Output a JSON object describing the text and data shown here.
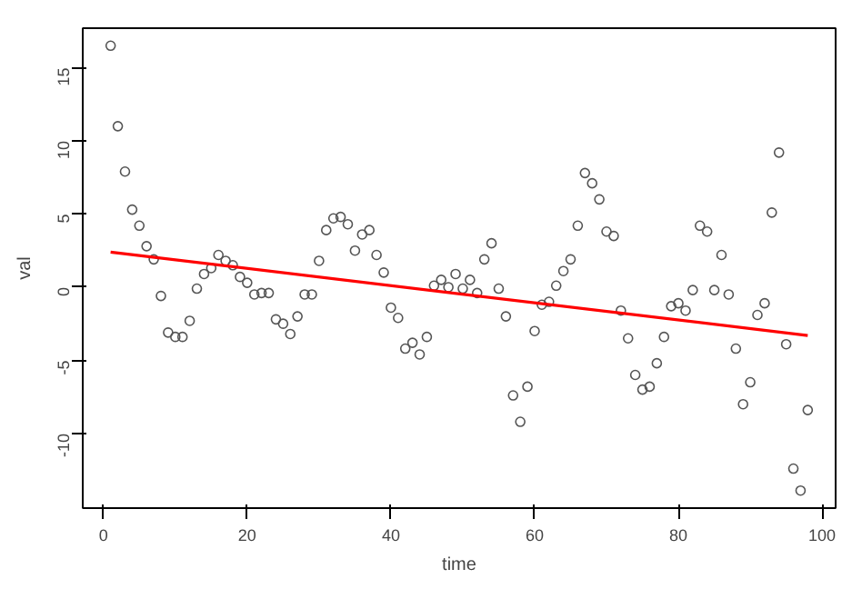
{
  "chart_data": {
    "type": "scatter",
    "xlabel": "time",
    "ylabel": "val",
    "marker": "circle",
    "grid": false,
    "xlim": [
      -2.88,
      101.88
    ],
    "ylim": [
      -15.1,
      17.7
    ],
    "xticks": [
      0,
      20,
      40,
      60,
      80,
      100
    ],
    "yticks": [
      -10,
      -5,
      0,
      5,
      10,
      15
    ],
    "x": [
      1,
      2,
      3,
      4,
      5,
      6,
      7,
      8,
      9,
      10,
      11,
      12,
      13,
      14,
      15,
      16,
      17,
      18,
      19,
      20,
      21,
      22,
      23,
      24,
      25,
      26,
      27,
      28,
      29,
      30,
      31,
      32,
      33,
      34,
      35,
      36,
      37,
      38,
      39,
      40,
      41,
      42,
      43,
      44,
      45,
      46,
      47,
      48,
      49,
      50,
      51,
      52,
      53,
      54,
      55,
      56,
      57,
      58,
      59,
      60,
      61,
      62,
      63,
      64,
      65,
      66,
      67,
      68,
      69,
      70,
      71,
      72,
      73,
      74,
      75,
      76,
      77,
      78,
      79,
      80,
      81,
      82,
      83,
      84,
      85,
      86,
      87,
      88,
      89,
      90,
      91,
      92,
      93,
      94,
      95,
      96,
      97,
      98
    ],
    "series": [
      {
        "color": "#555555",
        "values": [
          16.5,
          11.0,
          7.9,
          5.3,
          4.2,
          2.8,
          1.9,
          -0.6,
          -3.1,
          -3.4,
          -3.4,
          -2.3,
          -0.1,
          0.9,
          1.3,
          2.2,
          1.8,
          1.5,
          0.7,
          0.3,
          -0.5,
          -0.4,
          -0.4,
          -2.2,
          -2.5,
          -3.2,
          -2.0,
          -0.5,
          -0.5,
          1.8,
          3.9,
          4.7,
          4.8,
          4.3,
          2.5,
          3.6,
          3.9,
          2.2,
          1.0,
          -1.4,
          -2.1,
          -4.2,
          -3.8,
          -4.6,
          -3.4,
          0.1,
          0.5,
          0.0,
          0.9,
          -0.1,
          0.5,
          -0.4,
          1.9,
          3.0,
          -0.1,
          -2.0,
          -7.4,
          -9.2,
          -6.8,
          -3.0,
          -1.2,
          -1.0,
          0.1,
          1.1,
          1.9,
          4.2,
          7.8,
          7.1,
          6.0,
          3.8,
          3.5,
          -1.6,
          -3.5,
          -6.0,
          -7.0,
          -6.8,
          -5.2,
          -3.4,
          -1.3,
          -1.1,
          -1.6,
          -0.2,
          4.2,
          3.8,
          -0.2,
          2.2,
          -0.5,
          -4.2,
          -8.0,
          -6.5,
          -1.9,
          -1.1,
          5.1,
          9.2,
          -3.9,
          -12.4,
          -13.9,
          -8.4
        ]
      },
      {
        "type": "line",
        "color": "#ff0000",
        "x": [
          1,
          98
        ],
        "values": [
          2.4,
          -3.3
        ],
        "marker": "none"
      }
    ]
  }
}
